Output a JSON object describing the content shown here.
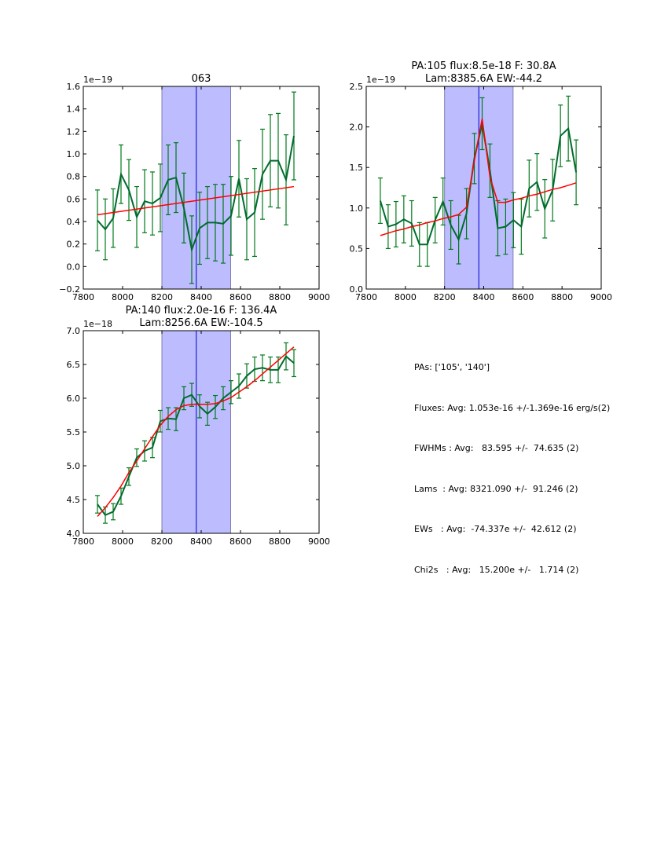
{
  "chart_data": [
    {
      "type": "line",
      "title": [
        "063"
      ],
      "offset_label": "1e−19",
      "xlim": [
        7800,
        9000
      ],
      "ylim": [
        -0.2,
        1.6
      ],
      "xticks": [
        7800,
        8000,
        8200,
        8400,
        8600,
        8800,
        9000
      ],
      "yticks": [
        -0.2,
        0.0,
        0.2,
        0.4,
        0.6,
        0.8,
        1.0,
        1.2,
        1.4,
        1.6
      ],
      "ytick_labels": [
        "−0.2",
        "0.0",
        "0.2",
        "0.4",
        "0.6",
        "0.8",
        "1.0",
        "1.2",
        "1.4",
        "1.6"
      ],
      "xtick_labels": [
        "7800",
        "8000",
        "8200",
        "8400",
        "8600",
        "8800",
        "9000"
      ],
      "shaded_region": [
        8200,
        8550
      ],
      "vline": 8375,
      "x": [
        7872,
        7912,
        7952,
        7992,
        8032,
        8072,
        8112,
        8152,
        8192,
        8232,
        8272,
        8312,
        8352,
        8392,
        8432,
        8472,
        8512,
        8552,
        8592,
        8632,
        8672,
        8712,
        8752,
        8792,
        8832,
        8872
      ],
      "series": [
        {
          "name": "data",
          "color": "#006b2e",
          "values": [
            0.41,
            0.33,
            0.43,
            0.82,
            0.68,
            0.44,
            0.58,
            0.56,
            0.61,
            0.77,
            0.79,
            0.52,
            0.15,
            0.34,
            0.39,
            0.39,
            0.38,
            0.45,
            0.78,
            0.42,
            0.48,
            0.82,
            0.94,
            0.94,
            0.77,
            1.16
          ],
          "errors": [
            0.27,
            0.27,
            0.26,
            0.26,
            0.27,
            0.27,
            0.28,
            0.28,
            0.3,
            0.31,
            0.31,
            0.31,
            0.3,
            0.32,
            0.32,
            0.34,
            0.35,
            0.35,
            0.34,
            0.36,
            0.39,
            0.4,
            0.41,
            0.42,
            0.4,
            0.39
          ]
        },
        {
          "name": "fit",
          "color": "#ff0000",
          "x": [
            7872,
            8872
          ],
          "values": [
            0.46,
            0.71
          ]
        }
      ]
    },
    {
      "type": "line",
      "title": [
        "PA:105 flux:8.5e-18 F: 30.8A",
        "Lam:8385.6A EW:-44.2"
      ],
      "offset_label": "1e−19",
      "xlim": [
        7800,
        9000
      ],
      "ylim": [
        0.0,
        2.5
      ],
      "xticks": [
        7800,
        8000,
        8200,
        8400,
        8600,
        8800,
        9000
      ],
      "yticks": [
        0.0,
        0.5,
        1.0,
        1.5,
        2.0,
        2.5
      ],
      "ytick_labels": [
        "0.0",
        "0.5",
        "1.0",
        "1.5",
        "2.0",
        "2.5"
      ],
      "xtick_labels": [
        "7800",
        "8000",
        "8200",
        "8400",
        "8600",
        "8800",
        "9000"
      ],
      "shaded_region": [
        8200,
        8550
      ],
      "vline": 8375,
      "x": [
        7872,
        7912,
        7952,
        7992,
        8032,
        8072,
        8112,
        8152,
        8192,
        8232,
        8272,
        8312,
        8352,
        8392,
        8432,
        8472,
        8512,
        8552,
        8592,
        8632,
        8672,
        8712,
        8752,
        8792,
        8832,
        8872
      ],
      "series": [
        {
          "name": "data",
          "color": "#006b2e",
          "values": [
            1.09,
            0.77,
            0.8,
            0.86,
            0.81,
            0.55,
            0.55,
            0.85,
            1.08,
            0.79,
            0.61,
            0.93,
            1.61,
            2.04,
            1.46,
            0.75,
            0.77,
            0.85,
            0.77,
            1.24,
            1.32,
            0.99,
            1.22,
            1.89,
            1.98,
            1.44
          ],
          "errors": [
            0.28,
            0.27,
            0.28,
            0.29,
            0.28,
            0.27,
            0.27,
            0.28,
            0.29,
            0.3,
            0.3,
            0.31,
            0.31,
            0.32,
            0.33,
            0.34,
            0.34,
            0.34,
            0.34,
            0.35,
            0.35,
            0.36,
            0.38,
            0.38,
            0.4,
            0.4
          ]
        },
        {
          "name": "fit",
          "color": "#ff0000",
          "x": [
            7872,
            7912,
            7952,
            7992,
            8032,
            8072,
            8112,
            8152,
            8192,
            8232,
            8272,
            8312,
            8352,
            8392,
            8432,
            8472,
            8512,
            8552,
            8592,
            8632,
            8672,
            8712,
            8752,
            8792,
            8832,
            8872
          ],
          "values": [
            0.66,
            0.69,
            0.72,
            0.74,
            0.77,
            0.79,
            0.82,
            0.84,
            0.87,
            0.89,
            0.92,
            1.01,
            1.58,
            2.1,
            1.38,
            1.07,
            1.07,
            1.1,
            1.12,
            1.15,
            1.17,
            1.2,
            1.23,
            1.25,
            1.28,
            1.31
          ]
        }
      ]
    },
    {
      "type": "line",
      "title": [
        "PA:140 flux:2.0e-16 F: 136.4A",
        "Lam:8256.6A EW:-104.5"
      ],
      "offset_label": "1e−18",
      "xlim": [
        7800,
        9000
      ],
      "ylim": [
        4.0,
        7.0
      ],
      "xticks": [
        7800,
        8000,
        8200,
        8400,
        8600,
        8800,
        9000
      ],
      "yticks": [
        4.0,
        4.5,
        5.0,
        5.5,
        6.0,
        6.5,
        7.0
      ],
      "ytick_labels": [
        "4.0",
        "4.5",
        "5.0",
        "5.5",
        "6.0",
        "6.5",
        "7.0"
      ],
      "xtick_labels": [
        "7800",
        "8000",
        "8200",
        "8400",
        "8600",
        "8800",
        "9000"
      ],
      "shaded_region": [
        8200,
        8550
      ],
      "vline": 8375,
      "x": [
        7872,
        7912,
        7952,
        7992,
        8032,
        8072,
        8112,
        8152,
        8192,
        8232,
        8272,
        8312,
        8352,
        8392,
        8432,
        8472,
        8512,
        8552,
        8592,
        8632,
        8672,
        8712,
        8752,
        8792,
        8832,
        8872
      ],
      "series": [
        {
          "name": "data",
          "color": "#006b2e",
          "values": [
            4.43,
            4.27,
            4.32,
            4.55,
            4.84,
            5.12,
            5.22,
            5.27,
            5.66,
            5.7,
            5.69,
            6.0,
            6.05,
            5.88,
            5.77,
            5.87,
            6.0,
            6.09,
            6.18,
            6.33,
            6.43,
            6.45,
            6.42,
            6.42,
            6.62,
            6.52
          ]
        },
        {
          "name": "fit",
          "color": "#ff0000",
          "x": [
            7872,
            7912,
            7952,
            7992,
            8032,
            8072,
            8112,
            8152,
            8192,
            8232,
            8272,
            8312,
            8352,
            8392,
            8432,
            8472,
            8512,
            8552,
            8592,
            8632,
            8672,
            8712,
            8752,
            8792,
            8832,
            8872
          ],
          "values": [
            4.25,
            4.38,
            4.53,
            4.7,
            4.9,
            5.07,
            5.25,
            5.43,
            5.6,
            5.73,
            5.83,
            5.89,
            5.91,
            5.91,
            5.91,
            5.92,
            5.96,
            6.01,
            6.09,
            6.17,
            6.26,
            6.36,
            6.46,
            6.56,
            6.66,
            6.76
          ]
        }
      ],
      "errors": [
        0.13,
        0.12,
        0.12,
        0.12,
        0.13,
        0.13,
        0.15,
        0.15,
        0.16,
        0.16,
        0.17,
        0.17,
        0.17,
        0.17,
        0.17,
        0.17,
        0.17,
        0.17,
        0.18,
        0.18,
        0.18,
        0.19,
        0.19,
        0.19,
        0.2,
        0.2
      ]
    }
  ],
  "stats": {
    "lines": [
      "PAs: ['105', '140']",
      "Fluxes: Avg: 1.053e-16 +/-1.369e-16 erg/s(2)",
      "FWHMs : Avg:   83.595 +/-  74.635 (2)",
      "Lams  : Avg: 8321.090 +/-  91.246 (2)",
      "EWs   : Avg:  -74.337e +/-  42.612 (2)",
      "Chi2s   : Avg:   15.200e +/-   1.714 (2)"
    ]
  },
  "colors": {
    "data": "#006b2e",
    "errorbar": "#007a1a",
    "fit": "#ff0000",
    "shade": "#bcbcff",
    "vline": "#0000cc"
  }
}
